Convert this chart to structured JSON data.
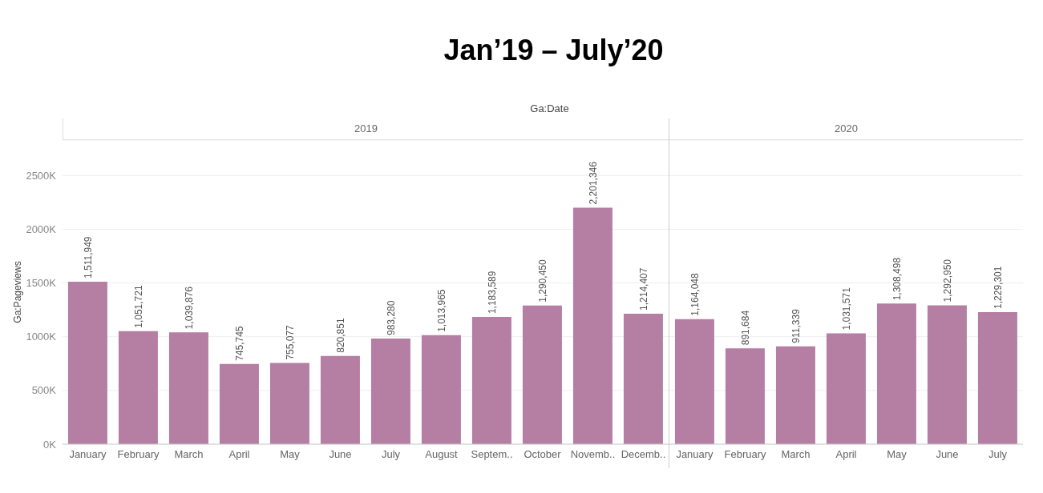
{
  "chart_data": [
    {
      "type": "bar",
      "title": "2019",
      "annotations": [
        "Jan’19 – July’20",
        "Ga:Date"
      ],
      "ylabel": "Ga:Pageviews",
      "categories": [
        "January",
        "February",
        "March",
        "April",
        "May",
        "June",
        "July",
        "August",
        "Septem..",
        "October",
        "Novemb..",
        "Decemb.."
      ],
      "values": [
        1511949,
        1051721,
        1039876,
        745745,
        755077,
        820851,
        983280,
        1013965,
        1183589,
        1290450,
        2201346,
        1214407
      ],
      "value_labels": [
        "1,511,949",
        "1,051,721",
        "1,039,876",
        "745,745",
        "755,077",
        "820,851",
        "983,280",
        "1,013,965",
        "1,183,589",
        "1,290,450",
        "2,201,346",
        "1,214,407"
      ],
      "color": "#b57fa4",
      "ylim": [
        0,
        2830000
      ],
      "yticks": [
        {
          "value": 0,
          "label": "0K"
        },
        {
          "value": 500000,
          "label": "500K"
        },
        {
          "value": 1000000,
          "label": "1000K"
        },
        {
          "value": 1500000,
          "label": "1500K"
        },
        {
          "value": 2000000,
          "label": "2000K"
        },
        {
          "value": 2500000,
          "label": "2500K"
        }
      ],
      "grid": "y"
    },
    {
      "type": "bar",
      "title": "2020",
      "categories": [
        "January",
        "February",
        "March",
        "April",
        "May",
        "June",
        "July"
      ],
      "values": [
        1164048,
        891684,
        911339,
        1031571,
        1308498,
        1292950,
        1229301
      ],
      "value_labels": [
        "1,164,048",
        "891,684",
        "911,339",
        "1,031,571",
        "1,308,498",
        "1,292,950",
        "1,229,301"
      ],
      "color": "#b57fa4",
      "ylim": [
        0,
        2830000
      ],
      "grid": "y",
      "tick_labels": "x"
    }
  ]
}
